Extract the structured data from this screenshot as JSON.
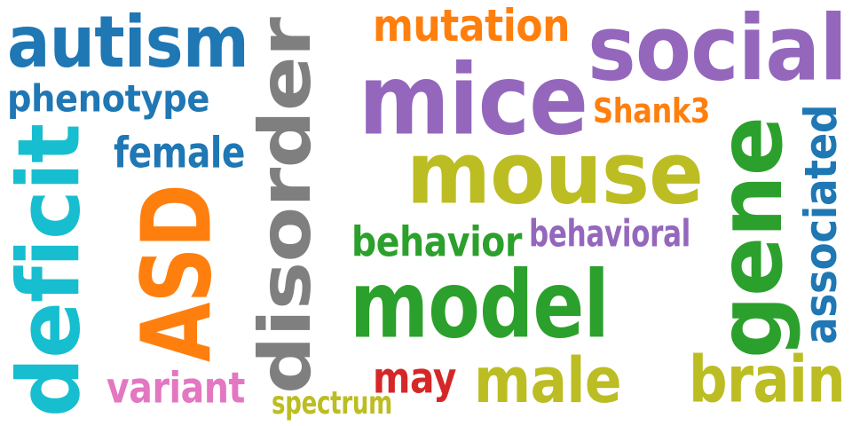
{
  "words": [
    {
      "text": "autism",
      "color": "#1f77b4"
    },
    {
      "text": "phenotype",
      "color": "#1f77b4"
    },
    {
      "text": "deficit",
      "color": "#17becf"
    },
    {
      "text": "female",
      "color": "#1f77b4"
    },
    {
      "text": "ASD",
      "color": "#ff7f0e"
    },
    {
      "text": "variant",
      "color": "#e377c2"
    },
    {
      "text": "disorder",
      "color": "#7f7f7f"
    },
    {
      "text": "spectrum",
      "color": "#bcbd22"
    },
    {
      "text": "mutation",
      "color": "#ff7f0e"
    },
    {
      "text": "mice",
      "color": "#9467bd"
    },
    {
      "text": "social",
      "color": "#9467bd"
    },
    {
      "text": "Shank3",
      "color": "#ff7f0e"
    },
    {
      "text": "mouse",
      "color": "#bcbd22"
    },
    {
      "text": "behavior",
      "color": "#2ca02c"
    },
    {
      "text": "behavioral",
      "color": "#9467bd"
    },
    {
      "text": "model",
      "color": "#2ca02c"
    },
    {
      "text": "gene",
      "color": "#2ca02c"
    },
    {
      "text": "associated",
      "color": "#1f77b4"
    },
    {
      "text": "may",
      "color": "#d62728"
    },
    {
      "text": "male",
      "color": "#bcbd22"
    },
    {
      "text": "brain",
      "color": "#bcbd22"
    }
  ]
}
